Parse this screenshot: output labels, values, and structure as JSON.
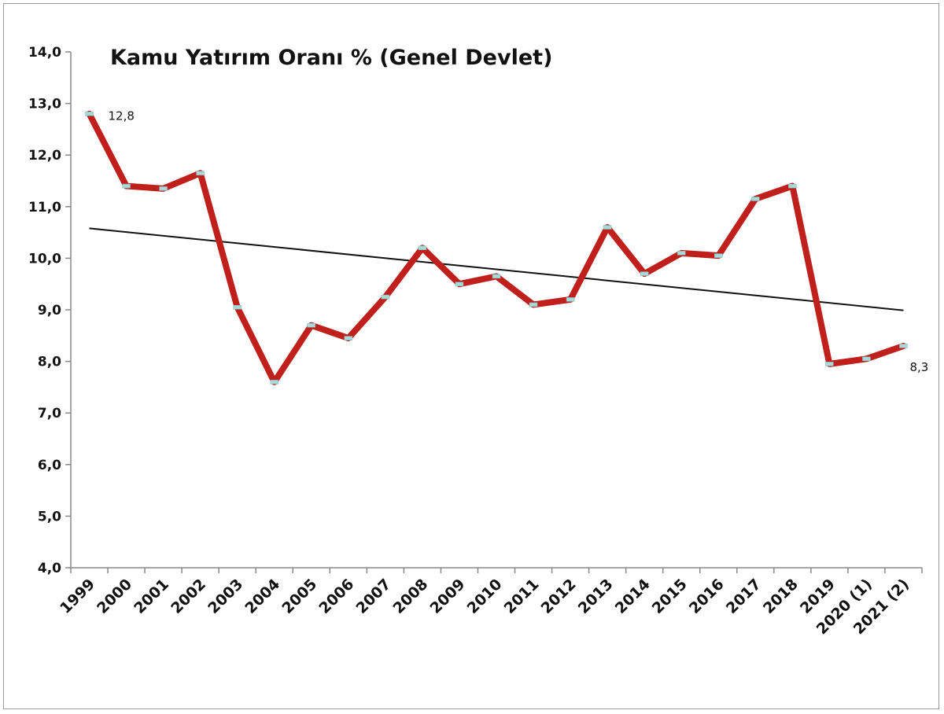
{
  "chart_data": {
    "type": "line",
    "title": "Kamu Yatırım Oranı % (Genel Devlet)",
    "xlabel": "",
    "ylabel": "",
    "ylim": [
      4.0,
      14.0
    ],
    "y_ticks": [
      "4,0",
      "5,0",
      "6,0",
      "7,0",
      "8,0",
      "9,0",
      "10,0",
      "11,0",
      "12,0",
      "13,0",
      "14,0"
    ],
    "categories": [
      "1999",
      "2000",
      "2001",
      "2002",
      "2003",
      "2004",
      "2005",
      "2006",
      "2007",
      "2008",
      "2009",
      "2010",
      "2011",
      "2012",
      "2013",
      "2014",
      "2015",
      "2016",
      "2017",
      "2018",
      "2019",
      "2020 (1)",
      "2021 (2)"
    ],
    "series": [
      {
        "values": [
          12.8,
          11.4,
          11.35,
          11.65,
          9.05,
          7.6,
          8.7,
          8.45,
          9.25,
          10.2,
          9.5,
          9.65,
          9.1,
          9.2,
          10.6,
          9.7,
          10.1,
          10.05,
          11.15,
          11.4,
          7.95,
          8.05,
          8.3
        ],
        "color": "#c0201c"
      }
    ],
    "trendline": {
      "start": 10.58,
      "end": 8.99,
      "color": "#111111"
    },
    "data_labels": [
      {
        "index": 0,
        "text": "12,8"
      },
      {
        "index": 22,
        "text": "8,3"
      }
    ],
    "marker_color": "#a8d8d8",
    "grid": false,
    "legend": "none"
  }
}
